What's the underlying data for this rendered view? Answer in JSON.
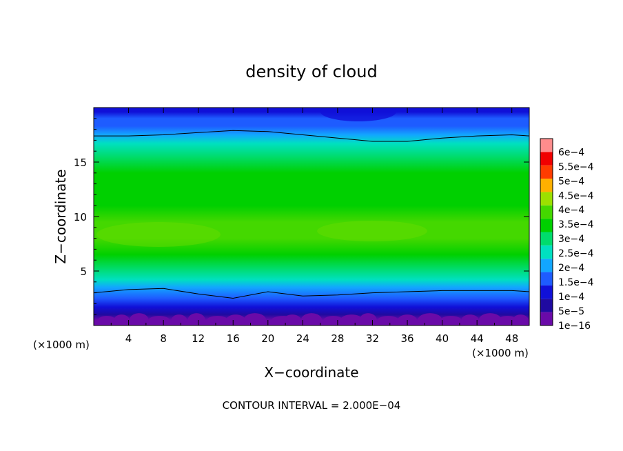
{
  "chart_data": {
    "type": "heatmap",
    "title": "density of cloud",
    "xlabel": "X−coordinate",
    "ylabel": "Z−coordinate",
    "x_unit_left": "(×1000 m)",
    "x_unit_right": "(×1000 m)",
    "footer": "CONTOUR INTERVAL = 2.000E−04",
    "xlim": [
      0,
      50
    ],
    "ylim": [
      0,
      20
    ],
    "x_ticks": [
      4,
      8,
      12,
      16,
      20,
      24,
      28,
      32,
      36,
      40,
      44,
      48
    ],
    "x_tick_labels": [
      "4",
      "8",
      "12",
      "16",
      "20",
      "24",
      "28",
      "32",
      "36",
      "40",
      "44",
      "48"
    ],
    "y_ticks": [
      5,
      10,
      15
    ],
    "y_tick_labels": [
      "5",
      "10",
      "15"
    ],
    "colorbar": {
      "levels": [
        "1e−16",
        "5e−5",
        "1e−4",
        "1.5e−4",
        "2e−4",
        "2.5e−4",
        "3e−4",
        "3.5e−4",
        "4e−4",
        "4.5e−4",
        "5e−4",
        "5.5e−4",
        "6e−4"
      ],
      "colors": [
        "#6a0aa8",
        "#1f0aa0",
        "#1010d8",
        "#1e5cff",
        "#12a6ff",
        "#00e0c0",
        "#00dc6c",
        "#00d000",
        "#44d800",
        "#9ce000",
        "#ffb000",
        "#ff3c00",
        "#f00000",
        "#ff8c8c"
      ]
    },
    "contour_lines_z": {
      "x": [
        0,
        4,
        8,
        12,
        16,
        20,
        24,
        28,
        32,
        36,
        40,
        44,
        48,
        50
      ],
      "upper": [
        17.4,
        17.4,
        17.5,
        17.7,
        17.9,
        17.8,
        17.5,
        17.2,
        16.9,
        16.9,
        17.2,
        17.4,
        17.5,
        17.4
      ],
      "lower": [
        3.0,
        3.3,
        3.4,
        2.9,
        2.5,
        3.1,
        2.7,
        2.8,
        3.0,
        3.1,
        3.2,
        3.2,
        3.2,
        3.1
      ]
    },
    "profile_levels_at_z": {
      "z": [
        0.5,
        1.0,
        1.7,
        2.5,
        3.5,
        4.2,
        5.2,
        6.5,
        8.0,
        9.5,
        11.0,
        12.5,
        14.0,
        15.5,
        16.7,
        17.5,
        18.3,
        19.0,
        19.6,
        20.0
      ],
      "level_index": [
        0,
        1,
        2,
        3,
        4,
        5,
        6,
        7,
        8,
        8,
        7,
        7,
        7,
        6,
        5,
        4,
        3,
        3,
        2,
        2
      ]
    }
  }
}
